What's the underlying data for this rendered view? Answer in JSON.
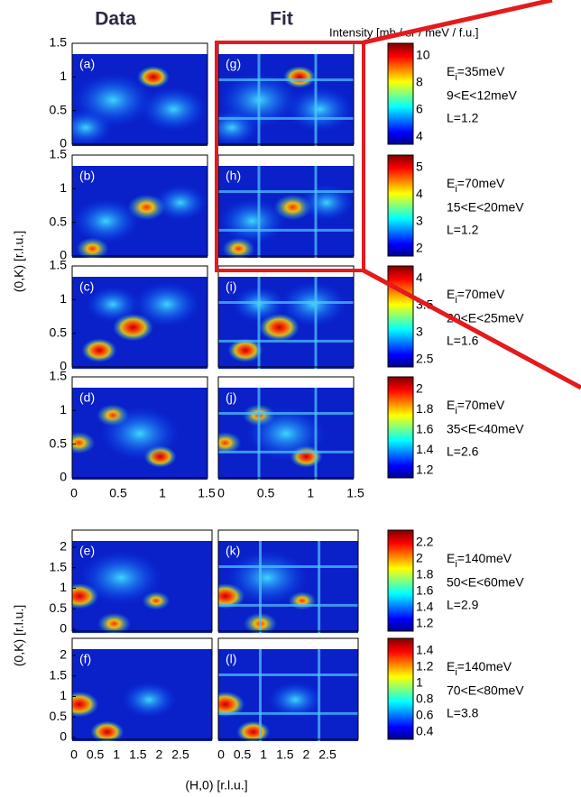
{
  "header": {
    "data": "Data",
    "fit": "Fit",
    "intensity": "Intensity [mb / sr / meV / f.u.]"
  },
  "y_axis_label": "(0,K) [r.l.u.]",
  "x_axis_label": "(H,0) [r.l.u.]",
  "top_group": {
    "x_ticks": [
      "0",
      "0.5",
      "1",
      "1.5"
    ],
    "y_ticks": [
      "0",
      "0.5",
      "1",
      "1.5"
    ],
    "rows": [
      {
        "data_panel": "(a)",
        "fit_panel": "(g)",
        "colorbar_ticks": [
          "4",
          "6",
          "8",
          "10"
        ],
        "ei": "E",
        "ei_sub": "i",
        "ei_value": "=35meV",
        "energy": "9<E<12meV",
        "l": "L=1.2"
      },
      {
        "data_panel": "(b)",
        "fit_panel": "(h)",
        "colorbar_ticks": [
          "2",
          "3",
          "4",
          "5"
        ],
        "ei": "E",
        "ei_sub": "i",
        "ei_value": "=70meV",
        "energy": "15<E<20meV",
        "l": "L=1.2"
      },
      {
        "data_panel": "(c)",
        "fit_panel": "(i)",
        "colorbar_ticks": [
          "2.5",
          "3",
          "3.5",
          "4"
        ],
        "ei": "E",
        "ei_sub": "i",
        "ei_value": "=70meV",
        "energy": "20<E<25meV",
        "l": "L=1.6"
      },
      {
        "data_panel": "(d)",
        "fit_panel": "(j)",
        "colorbar_ticks": [
          "1.2",
          "1.4",
          "1.6",
          "1.8",
          "2"
        ],
        "ei": "E",
        "ei_sub": "i",
        "ei_value": "=70meV",
        "energy": "35<E<40meV",
        "l": "L=2.6"
      }
    ]
  },
  "bottom_group": {
    "x_ticks": [
      "0",
      "0.5",
      "1",
      "1.5",
      "2",
      "2.5"
    ],
    "y_ticks": [
      "0",
      "0.5",
      "1",
      "1.5",
      "2"
    ],
    "rows": [
      {
        "data_panel": "(e)",
        "fit_panel": "(k)",
        "colorbar_ticks": [
          "1.2",
          "1.4",
          "1.6",
          "1.8",
          "2",
          "2.2"
        ],
        "ei": "E",
        "ei_sub": "i",
        "ei_value": "=140meV",
        "energy": "50<E<60meV",
        "l": "L=2.9"
      },
      {
        "data_panel": "(f)",
        "fit_panel": "(l)",
        "colorbar_ticks": [
          "0.4",
          "0.6",
          "0.8",
          "1",
          "1.2",
          "1.4"
        ],
        "ei": "E",
        "ei_sub": "i",
        "ei_value": "=140meV",
        "energy": "70<E<80meV",
        "l": "L=3.8"
      }
    ]
  }
}
